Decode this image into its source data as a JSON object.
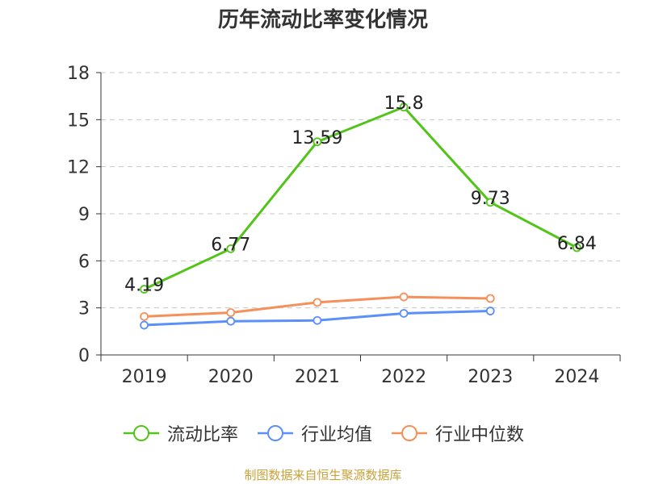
{
  "chart_data": {
    "type": "line",
    "title": "历年流动比率变化情况",
    "categories": [
      "2019",
      "2020",
      "2021",
      "2022",
      "2023",
      "2024"
    ],
    "series": [
      {
        "name": "流动比率",
        "color": "#52c41a",
        "values": [
          4.19,
          6.77,
          13.59,
          15.8,
          9.73,
          6.84
        ],
        "labels": [
          "4.19",
          "6.77",
          "13.59",
          "15.8",
          "9.73",
          "6.84"
        ]
      },
      {
        "name": "行业均值",
        "color": "#5b8ff9",
        "values": [
          1.9,
          2.15,
          2.2,
          2.65,
          2.8,
          null
        ]
      },
      {
        "name": "行业中位数",
        "color": "#f6905a",
        "values": [
          2.45,
          2.7,
          3.35,
          3.7,
          3.6,
          null
        ]
      }
    ],
    "ylim": [
      0,
      18
    ],
    "yticks": [
      0,
      3,
      6,
      9,
      12,
      15,
      18
    ],
    "grid": true,
    "legend_position": "bottom"
  },
  "source_note": "制图数据来自恒生聚源数据库"
}
